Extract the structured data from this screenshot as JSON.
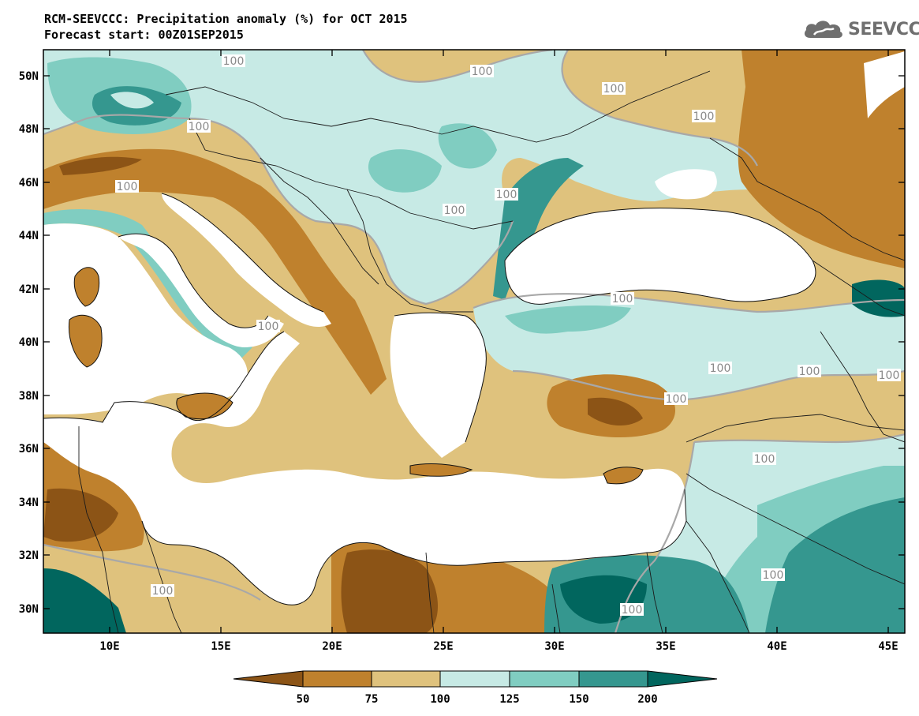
{
  "header": {
    "title_line1": "RCM-SEEVCCC: Precipitation anomaly (%) for OCT 2015",
    "title_line2": "Forecast start: 00Z01SEP2015",
    "logo_text": "SEEVCCC"
  },
  "map": {
    "lat_labels": [
      "50N",
      "48N",
      "46N",
      "44N",
      "42N",
      "40N",
      "38N",
      "36N",
      "34N",
      "32N",
      "30N"
    ],
    "lon_labels": [
      "10E",
      "15E",
      "20E",
      "25E",
      "30E",
      "35E",
      "40E",
      "45E"
    ],
    "contour_label": "100",
    "colors": {
      "below_50": "#8c5416",
      "50_75": "#bf812d",
      "75_100": "#dfc27d",
      "100_125": "#c7eae5",
      "125_150": "#80cdc1",
      "150_200": "#35978f",
      "above_200": "#01665e",
      "contour_line": "#a8a8a8"
    }
  },
  "colorbar": {
    "tick_labels": [
      "50",
      "75",
      "100",
      "125",
      "150",
      "200"
    ]
  }
}
